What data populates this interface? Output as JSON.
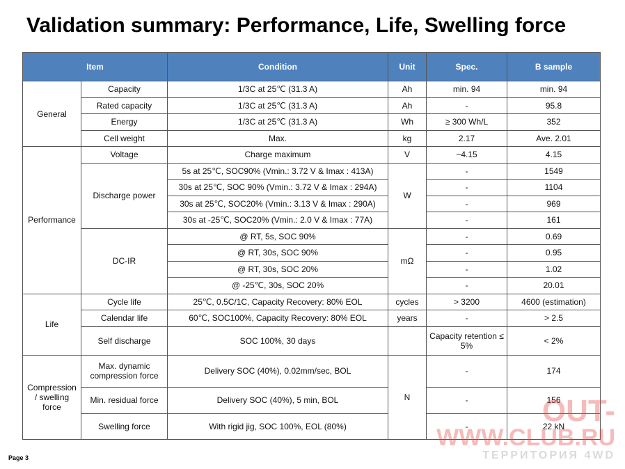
{
  "header": {
    "title": "Validation summary: Performance, Life, Swelling force",
    "page": "Page 3"
  },
  "table": {
    "headers": [
      "Item",
      "Condition",
      "Unit",
      "Spec.",
      "B sample"
    ],
    "groups": [
      "General",
      "Performance",
      "Life",
      "Compression / swelling force"
    ],
    "subitems": [
      "Capacity",
      "Rated capacity",
      "Energy",
      "Cell weight",
      "Voltage",
      "Discharge power",
      "DC-IR",
      "Cycle life",
      "Calendar life",
      "Self discharge",
      "Max. dynamic compression force",
      "Min. residual force",
      "Swelling force"
    ],
    "units": [
      "Ah",
      "Ah",
      "Wh",
      "kg",
      "V",
      "W",
      "mΩ",
      "cycles",
      "years",
      "N"
    ],
    "rows": [
      [
        "1/3C at 25℃ (31.3 A)",
        "min. 94",
        "min. 94"
      ],
      [
        "1/3C at 25℃ (31.3 A)",
        "-",
        "95.8"
      ],
      [
        "1/3C at 25℃ (31.3 A)",
        "≥ 300 Wh/L",
        "352"
      ],
      [
        "Max.",
        "2.17",
        "Ave. 2.01"
      ],
      [
        "Charge maximum",
        "~4.15",
        "4.15"
      ],
      [
        "5s at 25℃, SOC90% (Vmin.: 3.72 V &  Imax : 413A)",
        "-",
        "1549"
      ],
      [
        "30s at 25℃, SOC 90% (Vmin.: 3.72 V &  Imax : 294A)",
        "-",
        "1104"
      ],
      [
        "30s at 25℃, SOC20% (Vmin.: 3.13 V &  Imax : 290A)",
        "-",
        "969"
      ],
      [
        "30s at -25℃, SOC20% (Vmin.: 2.0 V &  Imax : 77A)",
        "-",
        "161"
      ],
      [
        "@ RT, 5s, SOC 90%",
        "-",
        "0.69"
      ],
      [
        "@ RT, 30s, SOC 90%",
        "-",
        "0.95"
      ],
      [
        "@ RT, 30s, SOC 20%",
        "-",
        "1.02"
      ],
      [
        "@ -25℃, 30s, SOC 20%",
        "-",
        "20.01"
      ],
      [
        "25℃, 0.5C/1C, Capacity Recovery: 80% EOL",
        "> 3200",
        "4600 (estimation)"
      ],
      [
        "60℃, SOC100%, Capacity Recovery: 80% EOL",
        "-",
        "> 2.5"
      ],
      [
        "SOC 100%, 30 days",
        "Capacity retention ≤ 5%",
        "< 2%"
      ],
      [
        "Delivery SOC (40%), 0.02mm/sec, BOL",
        "-",
        "174"
      ],
      [
        "Delivery SOC (40%), 5 min, BOL",
        "-",
        "156"
      ],
      [
        "With rigid jig, SOC 100%, EOL (80%)",
        "-",
        "22 kN"
      ]
    ]
  },
  "watermark": [
    "OUT-",
    "WWW.CLUB.RU",
    "ТЕРРИТОРИЯ 4WD"
  ]
}
